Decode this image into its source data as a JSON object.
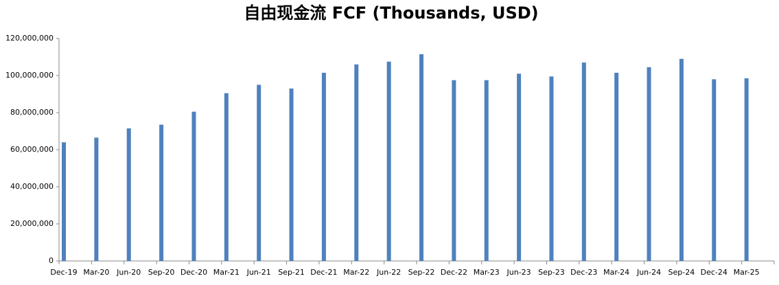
{
  "chart_data": {
    "type": "bar",
    "title": "自由现金流 FCF (Thousands, USD)",
    "categories": [
      "Dec-19",
      "Mar-20",
      "Jun-20",
      "Sep-20",
      "Dec-20",
      "Mar-21",
      "Jun-21",
      "Sep-21",
      "Dec-21",
      "Mar-22",
      "Jun-22",
      "Sep-22",
      "Dec-22",
      "Mar-23",
      "Jun-23",
      "Sep-23",
      "Dec-23",
      "Mar-24",
      "Jun-24",
      "Sep-24",
      "Dec-24",
      "Mar-25"
    ],
    "values": [
      64000000,
      66500000,
      71500000,
      73500000,
      80500000,
      90500000,
      95000000,
      93000000,
      101500000,
      106000000,
      107500000,
      111500000,
      97500000,
      97500000,
      101000000,
      99500000,
      107000000,
      101500000,
      104500000,
      109000000,
      98000000,
      98500000
    ],
    "color": "#4f81bd",
    "ylim": [
      0,
      120000000
    ],
    "yticks": [
      0,
      {
        "value": 20000000,
        "label": "20,000,000"
      },
      {
        "value": 40000000,
        "label": "40,000,000"
      },
      {
        "value": 60000000,
        "label": "60,000,000"
      },
      {
        "value": 80000000,
        "label": "80,000,000"
      },
      {
        "value": 100000000,
        "label": "100,000,000"
      },
      {
        "value": 120000000,
        "label": "120,000,000"
      }
    ],
    "grid": false
  }
}
